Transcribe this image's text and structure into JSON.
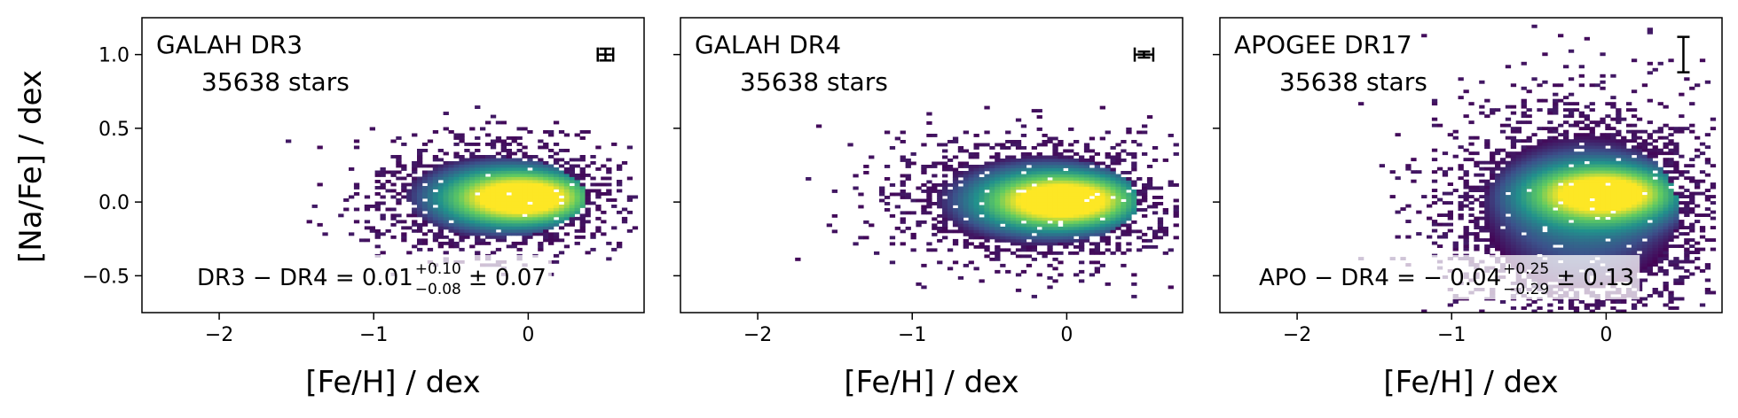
{
  "figure": {
    "ylabel": "[Na/Fe] / dex",
    "colormap": [
      "#440154",
      "#3b528b",
      "#21918c",
      "#5ec962",
      "#fde725"
    ]
  },
  "chart_data": [
    {
      "type": "heatmap",
      "title": "GALAH DR3",
      "count_label": "35638 stars",
      "annotation": {
        "main": "DR3 − DR4 = 0.01",
        "sup": "+0.10",
        "sub": "−0.08",
        "tail": "± 0.07"
      },
      "xlabel": "[Fe/H] / dex",
      "ylabel": "[Na/Fe] / dex",
      "xlim": [
        -2.5,
        0.75
      ],
      "ylim": [
        -0.75,
        1.25
      ],
      "xticks": [
        {
          "v": -2,
          "label": "−2"
        },
        {
          "v": -1,
          "label": "−1"
        },
        {
          "v": 0,
          "label": "0"
        }
      ],
      "yticks": [
        {
          "v": -0.5,
          "label": "−0.5"
        },
        {
          "v": 0.0,
          "label": "0.0"
        },
        {
          "v": 0.5,
          "label": "0.5"
        },
        {
          "v": 1.0,
          "label": "1.0"
        }
      ],
      "error_bar": {
        "x": 0.5,
        "y": 1.0,
        "xerr": 0.05,
        "yerr": 0.04
      },
      "density": {
        "core_x": [
          -0.8,
          0.35
        ],
        "core_y": [
          -0.25,
          0.3
        ],
        "peak": [
          0.0,
          0.02
        ],
        "scatter_x": [
          -2.25,
          0.7
        ],
        "scatter_y": [
          -0.5,
          1.2
        ]
      }
    },
    {
      "type": "heatmap",
      "title": "GALAH DR4",
      "count_label": "35638 stars",
      "annotation": null,
      "xlabel": "[Fe/H] / dex",
      "ylabel": "",
      "xlim": [
        -2.5,
        0.75
      ],
      "ylim": [
        -0.75,
        1.25
      ],
      "xticks": [
        {
          "v": -2,
          "label": "−2"
        },
        {
          "v": -1,
          "label": "−1"
        },
        {
          "v": 0,
          "label": "0"
        }
      ],
      "yticks": [],
      "error_bar": {
        "x": 0.5,
        "y": 1.0,
        "xerr": 0.06,
        "yerr": 0.02
      },
      "density": {
        "core_x": [
          -0.85,
          0.45
        ],
        "core_y": [
          -0.3,
          0.3
        ],
        "peak": [
          0.0,
          0.0
        ],
        "scatter_x": [
          -2.2,
          0.7
        ],
        "scatter_y": [
          -0.65,
          0.65
        ]
      }
    },
    {
      "type": "heatmap",
      "title": "APOGEE DR17",
      "count_label": "35638 stars",
      "annotation": {
        "main": "APO − DR4 = − 0.04",
        "sup": "+0.25",
        "sub": "−0.29",
        "tail": "± 0.13"
      },
      "xlabel": "[Fe/H] / dex",
      "ylabel": "",
      "xlim": [
        -2.5,
        0.75
      ],
      "ylim": [
        -0.75,
        1.25
      ],
      "xticks": [
        {
          "v": -2,
          "label": "−2"
        },
        {
          "v": -1,
          "label": "−1"
        },
        {
          "v": 0,
          "label": "0"
        }
      ],
      "yticks": [],
      "error_bar": {
        "x": 0.5,
        "y": 1.0,
        "xerr": 0.0,
        "yerr": 0.12
      },
      "density": {
        "core_x": [
          -0.8,
          0.45
        ],
        "core_y": [
          -0.6,
          0.45
        ],
        "peak": [
          0.0,
          0.05
        ],
        "scatter_x": [
          -2.25,
          0.7
        ],
        "scatter_y": [
          -0.75,
          1.2
        ]
      }
    }
  ]
}
